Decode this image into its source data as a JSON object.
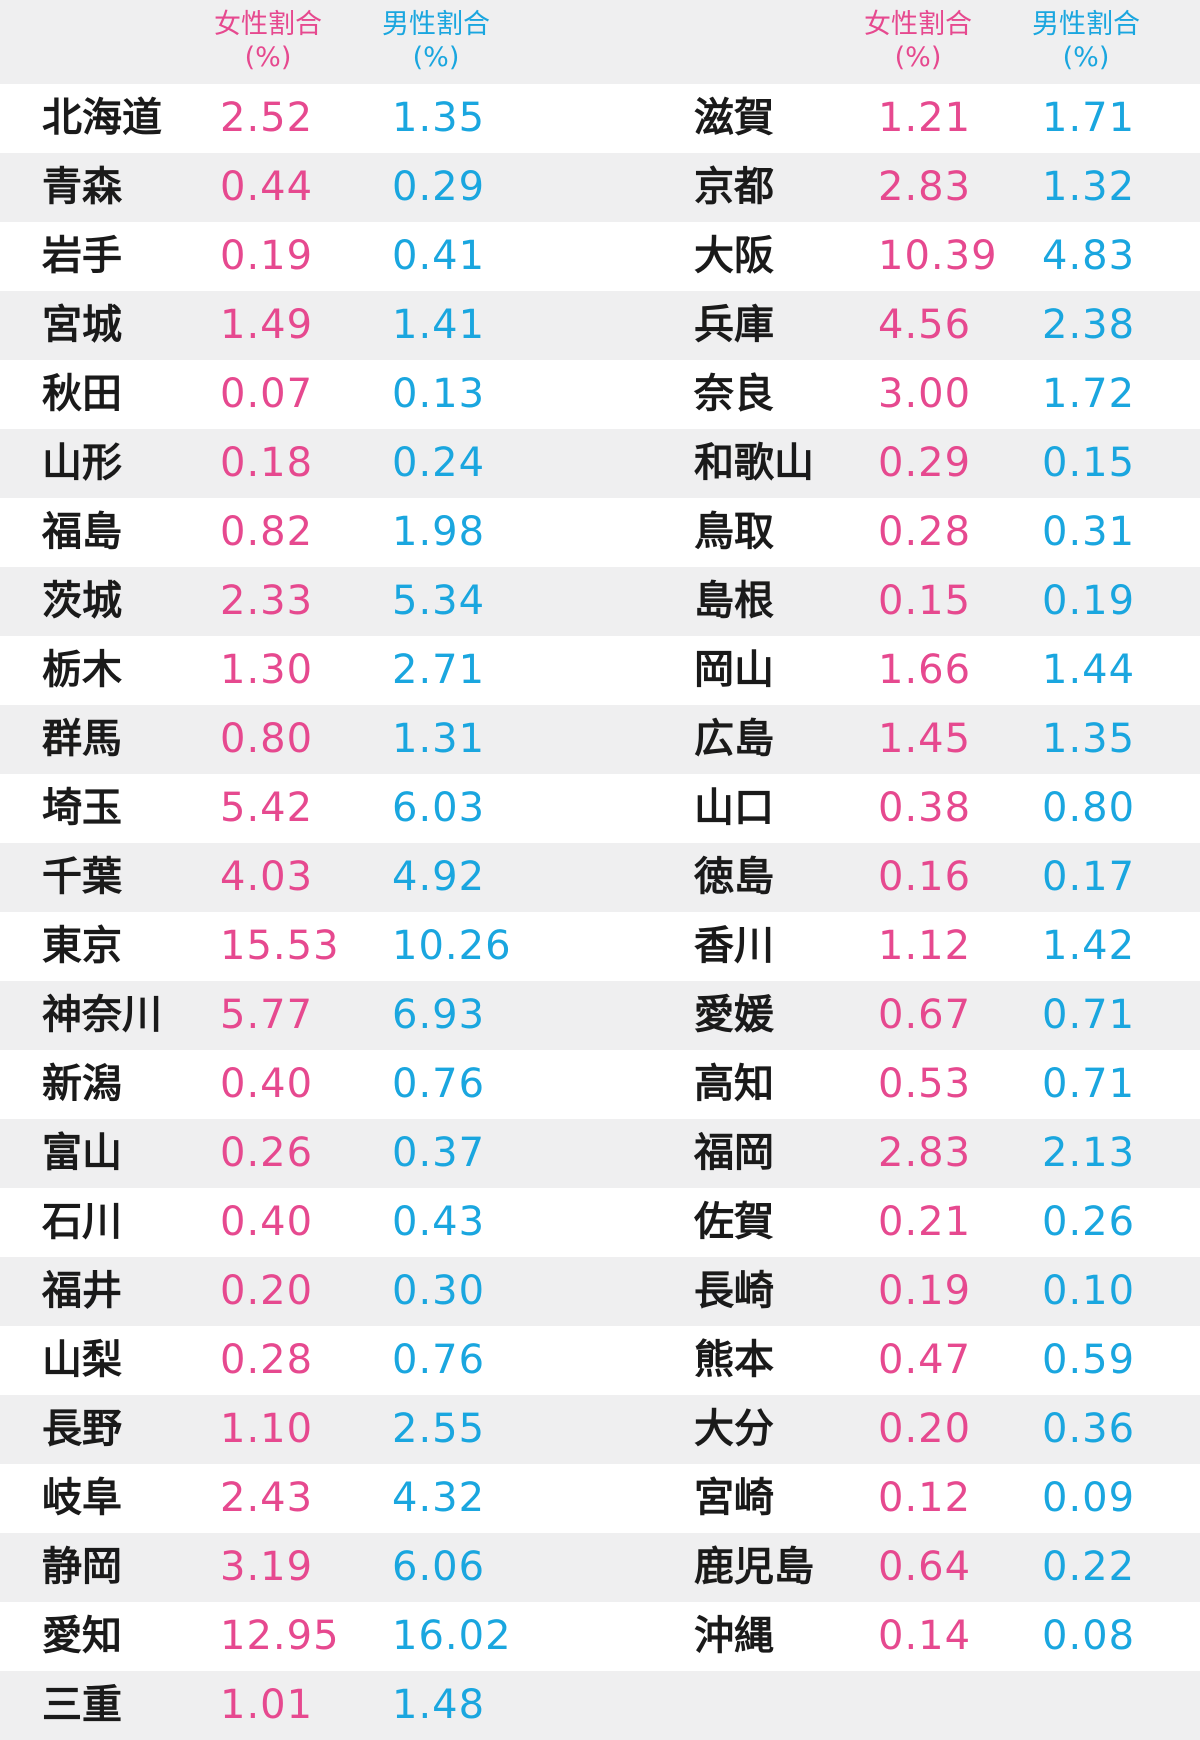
{
  "colors": {
    "female": "#e6498f",
    "male": "#1aa6df",
    "name": "#1a1a1a",
    "stripe": "#efeff0"
  },
  "headers": {
    "female": "女性割合\n(%)",
    "male": "男性割合\n(%)"
  },
  "rows": [
    {
      "left": {
        "name": "北海道",
        "female": "2.52",
        "male": "1.35"
      },
      "right": {
        "name": "滋賀",
        "female": "1.21",
        "male": "1.71"
      }
    },
    {
      "left": {
        "name": "青森",
        "female": "0.44",
        "male": "0.29"
      },
      "right": {
        "name": "京都",
        "female": "2.83",
        "male": "1.32"
      }
    },
    {
      "left": {
        "name": "岩手",
        "female": "0.19",
        "male": "0.41"
      },
      "right": {
        "name": "大阪",
        "female": "10.39",
        "male": "4.83"
      }
    },
    {
      "left": {
        "name": "宮城",
        "female": "1.49",
        "male": "1.41"
      },
      "right": {
        "name": "兵庫",
        "female": "4.56",
        "male": "2.38"
      }
    },
    {
      "left": {
        "name": "秋田",
        "female": "0.07",
        "male": "0.13"
      },
      "right": {
        "name": "奈良",
        "female": "3.00",
        "male": "1.72"
      }
    },
    {
      "left": {
        "name": "山形",
        "female": "0.18",
        "male": "0.24"
      },
      "right": {
        "name": "和歌山",
        "female": "0.29",
        "male": "0.15"
      }
    },
    {
      "left": {
        "name": "福島",
        "female": "0.82",
        "male": "1.98"
      },
      "right": {
        "name": "鳥取",
        "female": "0.28",
        "male": "0.31"
      }
    },
    {
      "left": {
        "name": "茨城",
        "female": "2.33",
        "male": "5.34"
      },
      "right": {
        "name": "島根",
        "female": "0.15",
        "male": "0.19"
      }
    },
    {
      "left": {
        "name": "栃木",
        "female": "1.30",
        "male": "2.71"
      },
      "right": {
        "name": "岡山",
        "female": "1.66",
        "male": "1.44"
      }
    },
    {
      "left": {
        "name": "群馬",
        "female": "0.80",
        "male": "1.31"
      },
      "right": {
        "name": "広島",
        "female": "1.45",
        "male": "1.35"
      }
    },
    {
      "left": {
        "name": "埼玉",
        "female": "5.42",
        "male": "6.03"
      },
      "right": {
        "name": "山口",
        "female": "0.38",
        "male": "0.80"
      }
    },
    {
      "left": {
        "name": "千葉",
        "female": "4.03",
        "male": "4.92"
      },
      "right": {
        "name": "徳島",
        "female": "0.16",
        "male": "0.17"
      }
    },
    {
      "left": {
        "name": "東京",
        "female": "15.53",
        "male": "10.26"
      },
      "right": {
        "name": "香川",
        "female": "1.12",
        "male": "1.42"
      }
    },
    {
      "left": {
        "name": "神奈川",
        "female": "5.77",
        "male": "6.93"
      },
      "right": {
        "name": "愛媛",
        "female": "0.67",
        "male": "0.71"
      }
    },
    {
      "left": {
        "name": "新潟",
        "female": "0.40",
        "male": "0.76"
      },
      "right": {
        "name": "高知",
        "female": "0.53",
        "male": "0.71"
      }
    },
    {
      "left": {
        "name": "富山",
        "female": "0.26",
        "male": "0.37"
      },
      "right": {
        "name": "福岡",
        "female": "2.83",
        "male": "2.13"
      }
    },
    {
      "left": {
        "name": "石川",
        "female": "0.40",
        "male": "0.43"
      },
      "right": {
        "name": "佐賀",
        "female": "0.21",
        "male": "0.26"
      }
    },
    {
      "left": {
        "name": "福井",
        "female": "0.20",
        "male": "0.30"
      },
      "right": {
        "name": "長崎",
        "female": "0.19",
        "male": "0.10"
      }
    },
    {
      "left": {
        "name": "山梨",
        "female": "0.28",
        "male": "0.76"
      },
      "right": {
        "name": "熊本",
        "female": "0.47",
        "male": "0.59"
      }
    },
    {
      "left": {
        "name": "長野",
        "female": "1.10",
        "male": "2.55"
      },
      "right": {
        "name": "大分",
        "female": "0.20",
        "male": "0.36"
      }
    },
    {
      "left": {
        "name": "岐阜",
        "female": "2.43",
        "male": "4.32"
      },
      "right": {
        "name": "宮崎",
        "female": "0.12",
        "male": "0.09"
      }
    },
    {
      "left": {
        "name": "静岡",
        "female": "3.19",
        "male": "6.06"
      },
      "right": {
        "name": "鹿児島",
        "female": "0.64",
        "male": "0.22"
      }
    },
    {
      "left": {
        "name": "愛知",
        "female": "12.95",
        "male": "16.02"
      },
      "right": {
        "name": "沖縄",
        "female": "0.14",
        "male": "0.08"
      }
    },
    {
      "left": {
        "name": "三重",
        "female": "1.01",
        "male": "1.48"
      },
      "right": {
        "name": "",
        "female": "",
        "male": ""
      }
    }
  ]
}
